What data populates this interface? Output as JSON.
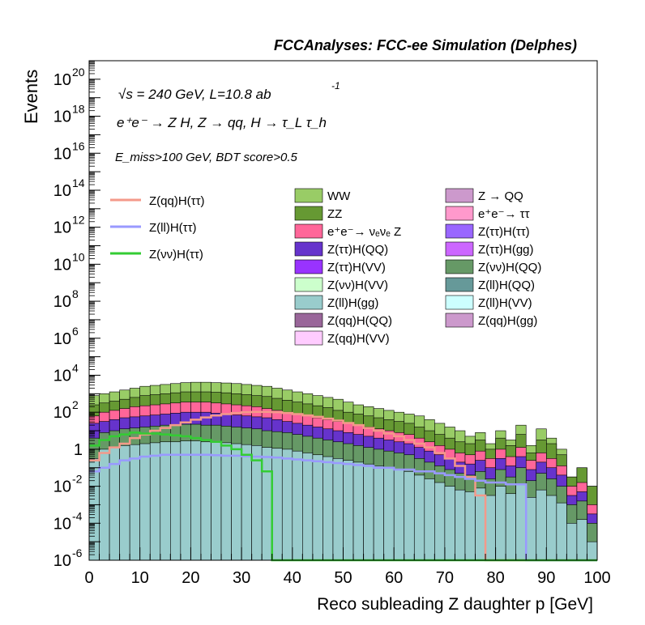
{
  "chart_data": {
    "type": "histogram",
    "title": "FCCAnalyses: FCC-ee Simulation (Delphes)",
    "xlabel": "Reco subleading Z daughter p [GeV]",
    "ylabel": "Events",
    "xlim": [
      0,
      100
    ],
    "ylim_exp": [
      -6,
      21
    ],
    "y_scale": "log",
    "x_ticks": [
      "0",
      "10",
      "20",
      "30",
      "40",
      "50",
      "60",
      "70",
      "80",
      "90",
      "100"
    ],
    "y_tick_exps": [
      "-6",
      "-4",
      "-2",
      "0",
      "2",
      "4",
      "6",
      "8",
      "10",
      "12",
      "14",
      "16",
      "18",
      "20"
    ],
    "annotations": {
      "energy": "√s = 240 GeV, L=10.8 ab",
      "energy_sup": "-1",
      "process": "e⁺e⁻ → Z H, Z → qq, H → τ_L τ_h",
      "cuts": "E_miss>100 GeV, BDT score>0.5"
    },
    "legend_lines": [
      {
        "name": "Z(qq)H(ττ)",
        "color": "#f4998a"
      },
      {
        "name": "Z(ll)H(ττ)",
        "color": "#9999ff"
      },
      {
        "name": "Z(νν)H(ττ)",
        "color": "#33cc33"
      }
    ],
    "legend_fills_col1": [
      {
        "name": "WW",
        "color": "#99cc66"
      },
      {
        "name": "ZZ",
        "color": "#669933"
      },
      {
        "name": "e⁺e⁻→ νₑνₑ Z",
        "color": "#ff6699"
      },
      {
        "name": "Z(ττ)H(QQ)",
        "color": "#6633cc"
      },
      {
        "name": "Z(ττ)H(VV)",
        "color": "#9933ff"
      },
      {
        "name": "Z(νν)H(VV)",
        "color": "#ccffcc"
      },
      {
        "name": "Z(ll)H(gg)",
        "color": "#99cccc"
      },
      {
        "name": "Z(qq)H(QQ)",
        "color": "#996699"
      },
      {
        "name": "Z(qq)H(VV)",
        "color": "#ffccff"
      }
    ],
    "legend_fills_col2": [
      {
        "name": "Z → QQ",
        "color": "#cc99cc"
      },
      {
        "name": "e⁺e⁻→ ττ",
        "color": "#ff99cc"
      },
      {
        "name": "Z(ττ)H(ττ)",
        "color": "#9966ff"
      },
      {
        "name": "Z(ττ)H(gg)",
        "color": "#cc66ff"
      },
      {
        "name": "Z(νν)H(QQ)",
        "color": "#669966"
      },
      {
        "name": "Z(ll)H(QQ)",
        "color": "#669999"
      },
      {
        "name": "Z(ll)H(VV)",
        "color": "#ccffff"
      },
      {
        "name": "Z(qq)H(gg)",
        "color": "#cc99cc"
      }
    ],
    "stack_envelopes": [
      {
        "name": "WW",
        "color": "#99cc66",
        "log10": [
          2.9,
          3.0,
          3.1,
          3.2,
          3.3,
          3.4,
          3.45,
          3.5,
          3.55,
          3.6,
          3.62,
          3.62,
          3.6,
          3.58,
          3.55,
          3.5,
          3.45,
          3.4,
          3.3,
          3.2,
          3.1,
          3.0,
          2.9,
          2.8,
          2.7,
          2.55,
          2.4,
          2.3,
          2.2,
          2.1,
          2.0,
          1.9,
          1.8,
          1.6,
          1.4,
          1.2,
          1.0,
          0.7,
          0.9,
          0.3,
          1.0,
          0.5,
          1.3,
          0.2,
          1.1,
          0.6,
          0.0,
          -1.5,
          -1.0,
          -2.0
        ]
      },
      {
        "name": "ZZ",
        "color": "#669933",
        "log10": [
          2.4,
          2.5,
          2.6,
          2.7,
          2.8,
          2.9,
          2.95,
          3.0,
          3.05,
          3.1,
          3.1,
          3.1,
          3.08,
          3.05,
          3.0,
          2.95,
          2.9,
          2.85,
          2.75,
          2.65,
          2.55,
          2.45,
          2.35,
          2.25,
          2.1,
          2.0,
          1.9,
          1.8,
          1.7,
          1.6,
          1.5,
          1.4,
          1.2,
          1.0,
          0.8,
          0.6,
          0.4,
          0.3,
          0.5,
          0.0,
          0.6,
          0.2,
          0.8,
          -0.2,
          0.5,
          0.3,
          -0.3,
          -1.5,
          -1.0,
          -2.0
        ]
      },
      {
        "name": "e⁺e⁻→ νₑνₑ Z",
        "color": "#ff6699",
        "log10": [
          1.8,
          2.0,
          2.1,
          2.2,
          2.3,
          2.35,
          2.4,
          2.45,
          2.5,
          2.55,
          2.55,
          2.55,
          2.5,
          2.45,
          2.4,
          2.35,
          2.3,
          2.2,
          2.1,
          2.0,
          1.9,
          1.8,
          1.7,
          1.6,
          1.5,
          1.4,
          1.3,
          1.2,
          1.1,
          1.0,
          0.9,
          0.8,
          0.6,
          0.4,
          0.2,
          0.0,
          -0.2,
          -0.3,
          -0.1,
          -0.5,
          0.0,
          -0.4,
          0.1,
          -0.6,
          -0.2,
          -0.5,
          -0.9,
          -2.0,
          -1.8,
          -3.0
        ]
      },
      {
        "name": "Z(ττ)H(QQ)",
        "color": "#6633cc",
        "log10": [
          1.4,
          1.5,
          1.6,
          1.7,
          1.75,
          1.8,
          1.85,
          1.9,
          1.95,
          2.0,
          2.0,
          2.0,
          1.95,
          1.9,
          1.85,
          1.8,
          1.75,
          1.7,
          1.6,
          1.5,
          1.4,
          1.3,
          1.2,
          1.1,
          1.0,
          0.9,
          0.8,
          0.7,
          0.6,
          0.5,
          0.4,
          0.3,
          0.1,
          -0.1,
          -0.3,
          -0.5,
          -0.7,
          -0.8,
          -0.6,
          -1.0,
          -0.5,
          -0.9,
          -0.4,
          -1.1,
          -0.7,
          -1.0,
          -1.4,
          -2.5,
          -2.3,
          -3.5
        ]
      },
      {
        "name": "Z(νν)H(QQ)",
        "color": "#669966",
        "log10": [
          0.6,
          0.9,
          1.0,
          1.1,
          1.15,
          1.2,
          1.25,
          1.3,
          1.3,
          1.35,
          1.35,
          1.3,
          1.3,
          1.25,
          1.2,
          1.15,
          1.1,
          1.0,
          0.95,
          0.9,
          0.8,
          0.7,
          0.6,
          0.5,
          0.4,
          0.3,
          0.2,
          0.1,
          0.0,
          -0.1,
          -0.2,
          -0.3,
          -0.5,
          -0.7,
          -0.9,
          -1.1,
          -1.3,
          -1.4,
          -1.2,
          -1.6,
          -1.1,
          -1.5,
          -1.0,
          -1.7,
          -1.3,
          -1.6,
          -2.0,
          -3.0,
          -2.8,
          -4.0
        ]
      },
      {
        "name": "Z(ll)H(gg)",
        "color": "#99cccc",
        "log10": [
          -0.5,
          0.0,
          0.1,
          0.2,
          0.25,
          0.3,
          0.35,
          0.4,
          0.4,
          0.45,
          0.45,
          0.4,
          0.4,
          0.35,
          0.3,
          0.25,
          0.2,
          0.1,
          0.05,
          0.0,
          -0.1,
          -0.2,
          -0.3,
          -0.4,
          -0.5,
          -0.6,
          -0.7,
          -0.8,
          -0.9,
          -1.0,
          -1.1,
          -1.2,
          -1.4,
          -1.6,
          -1.8,
          -2.0,
          -2.2,
          -2.3,
          -2.1,
          -2.5,
          -2.0,
          -2.4,
          -1.9,
          -2.6,
          -2.2,
          -2.5,
          -2.9,
          -4.0,
          -3.8,
          -5.0
        ]
      }
    ],
    "line_series": [
      {
        "name": "Z(qq)H(ττ)",
        "color": "#f4998a",
        "log10": [
          -0.6,
          -0.2,
          0.1,
          0.3,
          0.6,
          0.8,
          1.0,
          1.15,
          1.3,
          1.45,
          1.6,
          1.72,
          1.82,
          1.9,
          1.96,
          2.0,
          2.02,
          2.02,
          2.0,
          1.96,
          1.9,
          1.83,
          1.75,
          1.65,
          1.55,
          1.42,
          1.3,
          1.15,
          1.0,
          0.85,
          0.7,
          0.5,
          0.3,
          0.1,
          -0.2,
          -0.5,
          -0.9,
          -1.5,
          -2.5,
          -6.5,
          -6.5,
          -6.5,
          -6.5,
          -6.5,
          -6.5,
          -6.5,
          -6.5,
          -6.5,
          -6.5,
          -6.5
        ]
      },
      {
        "name": "Z(ll)H(ττ)",
        "color": "#9999ff",
        "log10": [
          -1.2,
          -1.0,
          -0.8,
          -0.6,
          -0.5,
          -0.4,
          -0.35,
          -0.3,
          -0.3,
          -0.3,
          -0.3,
          -0.3,
          -0.32,
          -0.35,
          -0.35,
          -0.38,
          -0.4,
          -0.42,
          -0.45,
          -0.5,
          -0.55,
          -0.6,
          -0.65,
          -0.7,
          -0.75,
          -0.8,
          -0.85,
          -0.9,
          -1.0,
          -1.0,
          -1.1,
          -1.1,
          -1.2,
          -1.2,
          -1.3,
          -1.4,
          -1.5,
          -1.6,
          -1.7,
          -1.8,
          -1.8,
          -1.9,
          -1.9,
          -6.5,
          -6.5,
          -6.5,
          -6.5,
          -6.5,
          -6.5,
          -6.5
        ]
      },
      {
        "name": "Z(νν)H(ττ)",
        "color": "#33cc33",
        "log10": [
          0.2,
          0.5,
          0.7,
          0.8,
          0.9,
          0.85,
          0.85,
          0.8,
          0.75,
          0.7,
          0.6,
          0.5,
          0.4,
          0.2,
          0.0,
          -0.3,
          -0.6,
          -1.2,
          -6.5,
          -6.5,
          -6.5,
          -6.5,
          -6.5,
          -6.5,
          -6.5,
          -6.5,
          -6.5,
          -6.5,
          -6.5,
          -6.5,
          -6.5,
          -6.5,
          -6.5,
          -6.5,
          -6.5,
          -6.5,
          -6.5,
          -6.5,
          -6.5,
          -6.5,
          -6.5,
          -6.5,
          -6.5,
          -6.5,
          -6.5,
          -6.5,
          -6.5,
          -6.5,
          -6.5,
          -6.5
        ]
      }
    ]
  }
}
